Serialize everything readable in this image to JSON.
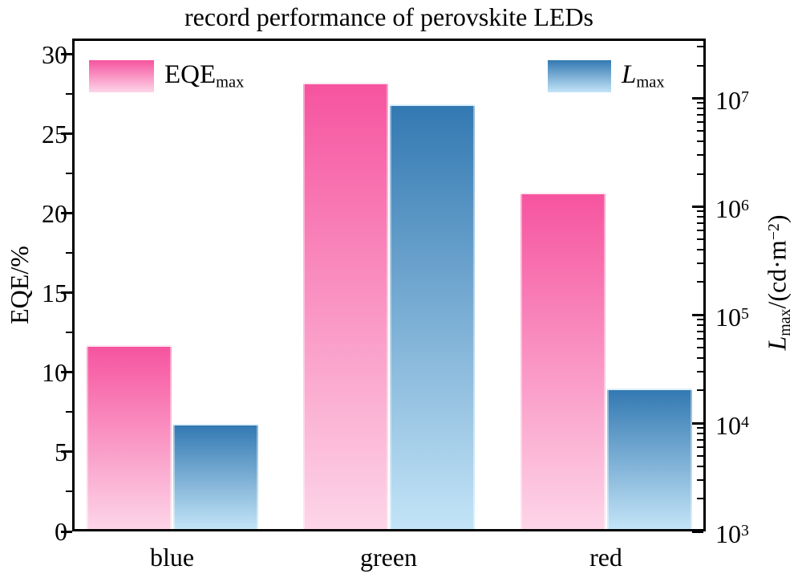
{
  "chart_data": {
    "type": "bar",
    "title": "record performance of perovskite LEDs",
    "categories": [
      "blue",
      "green",
      "red"
    ],
    "series": [
      {
        "name": "EQE_max",
        "axis": "left",
        "values": [
          11.7,
          28.2,
          21.3
        ],
        "unit": "%",
        "color_top": "#f6549f",
        "color_bottom": "#fdd5e8"
      },
      {
        "name": "L_max",
        "axis": "right",
        "values": [
          9800,
          8700000,
          21000
        ],
        "unit": "cd·m−2",
        "color_top": "#3379b2",
        "color_bottom": "#c3e4f7"
      }
    ],
    "left_axis": {
      "label": "EQE/%",
      "min": 0,
      "max": 31,
      "major_ticks": [
        0,
        5,
        10,
        15,
        20,
        25,
        30
      ],
      "minor_step": 2.5
    },
    "right_axis": {
      "label_main": "L",
      "label_sub": "max",
      "label_rest": "/(cd·m",
      "label_sup": "−2",
      "label_close": ")",
      "scale": "log",
      "min_exp": 3,
      "max_exp": 7.55,
      "tick_exponents": [
        3,
        4,
        5,
        6,
        7
      ]
    },
    "legend": [
      {
        "main": "EQE",
        "sub": "max",
        "italic": false,
        "series": "EQE_max"
      },
      {
        "main": "L",
        "sub": "max",
        "italic": true,
        "series": "L_max"
      }
    ],
    "axis_color": "#000000",
    "background": "#ffffff",
    "grid": false,
    "legend_position": "top-inside"
  }
}
